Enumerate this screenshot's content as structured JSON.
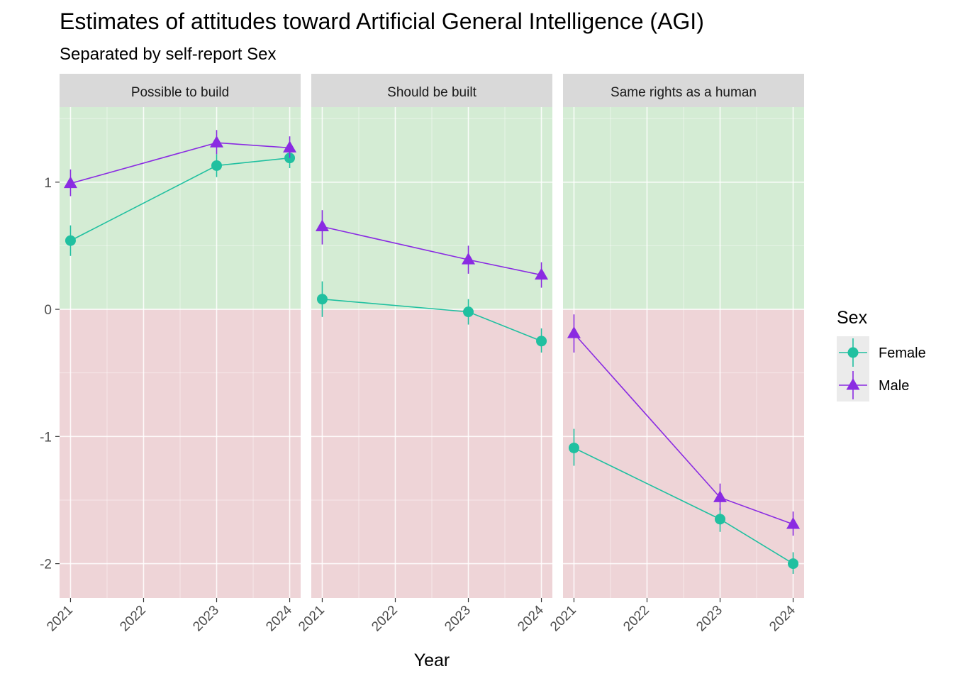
{
  "chart_data": {
    "type": "line",
    "title": "Estimates of attitudes toward Artificial General Intelligence (AGI)",
    "subtitle": "Separated by self-report Sex",
    "xlabel": "Year",
    "ylabel": "",
    "x_ticks": [
      "2021",
      "2022",
      "2023",
      "2024"
    ],
    "x_range": [
      2020.85,
      2024.15
    ],
    "y_ticks": [
      1,
      0,
      -1,
      -2
    ],
    "ylim": [
      -2.27,
      1.59
    ],
    "grid": true,
    "background_bands": [
      {
        "from": 0,
        "to": 1.59,
        "color": "#d4ecd4"
      },
      {
        "from": -2.27,
        "to": 0,
        "color": "#eed4d7"
      }
    ],
    "legend": {
      "title": "Sex",
      "position": "right",
      "entries": [
        {
          "name": "Female",
          "color": "#20c0a0",
          "shape": "circle"
        },
        {
          "name": "Male",
          "color": "#8a2be2",
          "shape": "triangle"
        }
      ]
    },
    "panels": [
      {
        "label": "Possible to build",
        "series": [
          {
            "name": "Female",
            "points": [
              {
                "x": 2021,
                "y": 0.54,
                "lo": 0.42,
                "hi": 0.66
              },
              {
                "x": 2023,
                "y": 1.13,
                "lo": 1.04,
                "hi": 1.22
              },
              {
                "x": 2024,
                "y": 1.19,
                "lo": 1.11,
                "hi": 1.27
              }
            ]
          },
          {
            "name": "Male",
            "points": [
              {
                "x": 2021,
                "y": 0.99,
                "lo": 0.89,
                "hi": 1.1
              },
              {
                "x": 2023,
                "y": 1.31,
                "lo": 1.22,
                "hi": 1.41
              },
              {
                "x": 2024,
                "y": 1.27,
                "lo": 1.19,
                "hi": 1.36
              }
            ]
          }
        ]
      },
      {
        "label": "Should be built",
        "series": [
          {
            "name": "Female",
            "points": [
              {
                "x": 2021,
                "y": 0.08,
                "lo": -0.06,
                "hi": 0.22
              },
              {
                "x": 2023,
                "y": -0.02,
                "lo": -0.12,
                "hi": 0.08
              },
              {
                "x": 2024,
                "y": -0.25,
                "lo": -0.34,
                "hi": -0.15
              }
            ]
          },
          {
            "name": "Male",
            "points": [
              {
                "x": 2021,
                "y": 0.65,
                "lo": 0.51,
                "hi": 0.78
              },
              {
                "x": 2023,
                "y": 0.39,
                "lo": 0.28,
                "hi": 0.5
              },
              {
                "x": 2024,
                "y": 0.27,
                "lo": 0.17,
                "hi": 0.37
              }
            ]
          }
        ]
      },
      {
        "label": "Same rights as a human",
        "series": [
          {
            "name": "Female",
            "points": [
              {
                "x": 2021,
                "y": -1.09,
                "lo": -1.23,
                "hi": -0.94
              },
              {
                "x": 2023,
                "y": -1.65,
                "lo": -1.75,
                "hi": -1.56
              },
              {
                "x": 2024,
                "y": -2.0,
                "lo": -2.08,
                "hi": -1.91
              }
            ]
          },
          {
            "name": "Male",
            "points": [
              {
                "x": 2021,
                "y": -0.19,
                "lo": -0.34,
                "hi": -0.04
              },
              {
                "x": 2023,
                "y": -1.48,
                "lo": -1.58,
                "hi": -1.37
              },
              {
                "x": 2024,
                "y": -1.69,
                "lo": -1.78,
                "hi": -1.59
              }
            ]
          }
        ]
      }
    ]
  }
}
